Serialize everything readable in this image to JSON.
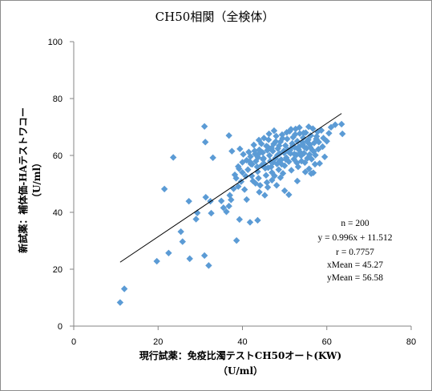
{
  "chart_data": {
    "type": "scatter",
    "title": "CH50相関（全検体）",
    "xlabel_line1": "現行試薬：免疫比濁テストCH50オート(KW)",
    "xlabel_line2": "（U/ml）",
    "ylabel_line1": "新試薬：補体価-HAテストワコー",
    "ylabel_line2": "（U/ml）",
    "xlim": [
      0,
      80
    ],
    "ylim": [
      0,
      100
    ],
    "xticks": [
      0,
      20,
      40,
      60,
      80
    ],
    "yticks": [
      0,
      20,
      40,
      60,
      80,
      100
    ],
    "grid": false,
    "marker_color": "#5B9BD5",
    "regression": {
      "slope": 0.996,
      "intercept": 11.512,
      "x_range": [
        11,
        63.5
      ]
    },
    "stats": [
      "n = 200",
      "y = 0.996x + 11.512",
      "r = 0.7757",
      "xMean = 45.27",
      "yMean = 56.58"
    ],
    "points": [
      [
        11,
        8.3
      ],
      [
        12,
        13.1
      ],
      [
        19.7,
        22.8
      ],
      [
        22.5,
        25.7
      ],
      [
        25.4,
        33.2
      ],
      [
        25.8,
        29.7
      ],
      [
        27.5,
        23.7
      ],
      [
        31,
        24.8
      ],
      [
        32,
        21.3
      ],
      [
        21.5,
        48.2
      ],
      [
        23.6,
        59.3
      ],
      [
        27.3,
        43.9
      ],
      [
        29,
        37.6
      ],
      [
        29.3,
        39.8
      ],
      [
        31.3,
        45.3
      ],
      [
        32.4,
        43.9
      ],
      [
        32.6,
        39.7
      ],
      [
        35,
        44
      ],
      [
        35.5,
        41.6
      ],
      [
        36.2,
        40.2
      ],
      [
        36.8,
        42.2
      ],
      [
        37,
        46
      ],
      [
        37.3,
        44.4
      ],
      [
        38.6,
        30.1
      ],
      [
        39,
        49.1
      ],
      [
        39.3,
        37.5
      ],
      [
        31,
        70.2
      ],
      [
        31.2,
        64.7
      ],
      [
        33,
        59.2
      ],
      [
        36.8,
        67
      ],
      [
        39.4,
        62.3
      ],
      [
        37.5,
        61.5
      ],
      [
        38.5,
        52
      ],
      [
        39,
        56.1
      ],
      [
        40,
        54
      ],
      [
        40.5,
        48
      ],
      [
        41,
        44.5
      ],
      [
        41.8,
        36.5
      ],
      [
        43.6,
        37.2
      ],
      [
        40.2,
        60.4
      ],
      [
        41,
        58.3
      ],
      [
        41.3,
        55
      ],
      [
        41.5,
        61.2
      ],
      [
        42,
        57
      ],
      [
        42.2,
        52.8
      ],
      [
        42.5,
        51
      ],
      [
        43,
        60.5
      ],
      [
        43.2,
        58
      ],
      [
        43.5,
        56
      ],
      [
        43.6,
        54.3
      ],
      [
        43.8,
        52
      ],
      [
        44,
        62
      ],
      [
        44.2,
        49.5
      ],
      [
        44.5,
        64.1
      ],
      [
        44.8,
        61
      ],
      [
        45,
        59
      ],
      [
        45.2,
        57
      ],
      [
        45.4,
        55.5
      ],
      [
        45.6,
        53
      ],
      [
        45.8,
        50.5
      ],
      [
        46,
        63
      ],
      [
        46.2,
        65.5
      ],
      [
        46.4,
        60
      ],
      [
        46.6,
        58
      ],
      [
        46.8,
        56
      ],
      [
        47,
        54
      ],
      [
        47.2,
        61.5
      ],
      [
        47.4,
        64
      ],
      [
        47.6,
        52.8
      ],
      [
        47.8,
        59
      ],
      [
        48,
        66.8
      ],
      [
        48.2,
        57
      ],
      [
        48.4,
        62.4
      ],
      [
        48.6,
        55
      ],
      [
        48.8,
        60.6
      ],
      [
        49,
        64.8
      ],
      [
        49.2,
        58.5
      ],
      [
        49.4,
        67.3
      ],
      [
        49.6,
        53.7
      ],
      [
        49.8,
        61.6
      ],
      [
        50,
        56.4
      ],
      [
        50.2,
        63.5
      ],
      [
        50.4,
        59.2
      ],
      [
        50.6,
        65.8
      ],
      [
        50.8,
        62
      ],
      [
        51,
        57.8
      ],
      [
        51.2,
        68.5
      ],
      [
        51.4,
        60.7
      ],
      [
        51.6,
        54.8
      ],
      [
        51.8,
        64.2
      ],
      [
        52,
        66.4
      ],
      [
        52.2,
        58.7
      ],
      [
        52.4,
        62.8
      ],
      [
        52.6,
        69.3
      ],
      [
        52.8,
        60.2
      ],
      [
        53,
        65
      ],
      [
        53.2,
        56
      ],
      [
        53.4,
        63.1
      ],
      [
        53.6,
        67.7
      ],
      [
        53.8,
        61
      ],
      [
        54,
        58
      ],
      [
        54.2,
        64.6
      ],
      [
        54.4,
        66.2
      ],
      [
        54.6,
        60.8
      ],
      [
        54.8,
        57.5
      ],
      [
        55,
        68
      ],
      [
        55.2,
        62.5
      ],
      [
        55.4,
        59
      ],
      [
        55.6,
        65.5
      ],
      [
        55.8,
        55.3
      ],
      [
        56,
        63.8
      ],
      [
        56.2,
        67
      ],
      [
        56.4,
        58.7
      ],
      [
        56.6,
        61.8
      ],
      [
        56.8,
        53.9
      ],
      [
        57,
        64.4
      ],
      [
        57.3,
        60.1
      ],
      [
        57.6,
        66.7
      ],
      [
        58,
        62.2
      ],
      [
        58.3,
        57.2
      ],
      [
        58.7,
        68.8
      ],
      [
        59,
        63.1
      ],
      [
        59.5,
        59.5
      ],
      [
        60,
        65
      ],
      [
        60.5,
        67.8
      ],
      [
        61,
        69.9
      ],
      [
        62,
        70.8
      ],
      [
        63.5,
        71
      ],
      [
        63.7,
        67.6
      ],
      [
        43.1,
        50.2
      ],
      [
        44,
        47.1
      ],
      [
        45.3,
        46
      ],
      [
        46,
        48.8
      ],
      [
        47,
        51.3
      ],
      [
        48.1,
        49.5
      ],
      [
        49,
        52.2
      ],
      [
        50,
        47.6
      ],
      [
        51,
        46.2
      ],
      [
        53,
        51
      ],
      [
        54.9,
        54.2
      ],
      [
        56.3,
        53.6
      ],
      [
        57.2,
        56.9
      ],
      [
        42.7,
        63.7
      ],
      [
        41.9,
        59.6
      ],
      [
        40.8,
        52.7
      ],
      [
        40,
        57.6
      ],
      [
        39.7,
        50.8
      ],
      [
        39.2,
        55.3
      ],
      [
        38.2,
        53.2
      ],
      [
        37.9,
        48.3
      ],
      [
        45.1,
        66.1
      ],
      [
        46.3,
        67.6
      ],
      [
        47.5,
        68.7
      ],
      [
        48.7,
        63.4
      ],
      [
        49.5,
        66
      ],
      [
        50.5,
        68.1
      ],
      [
        51.5,
        69.2
      ],
      [
        52.5,
        67.4
      ],
      [
        53.5,
        69.8
      ],
      [
        54.5,
        67.9
      ],
      [
        55.7,
        70.1
      ],
      [
        56.7,
        69.4
      ],
      [
        57.8,
        68.3
      ],
      [
        42.3,
        56.9
      ],
      [
        43.7,
        59.3
      ],
      [
        44.6,
        56.6
      ],
      [
        45.9,
        61.8
      ],
      [
        46.9,
        62.6
      ],
      [
        47.9,
        64.9
      ],
      [
        48.9,
        58.2
      ],
      [
        49.9,
        60.9
      ],
      [
        50.9,
        61.3
      ],
      [
        51.9,
        63.3
      ],
      [
        52.9,
        57.4
      ],
      [
        53.9,
        59.9
      ],
      [
        54.7,
        62.9
      ],
      [
        55.9,
        60.3
      ],
      [
        56.9,
        61.4
      ],
      [
        58.1,
        64.7
      ],
      [
        59.2,
        66.1
      ],
      [
        44.9,
        58.6
      ],
      [
        46.1,
        55.7
      ],
      [
        47.3,
        57.6
      ],
      [
        48.3,
        60.1
      ],
      [
        49.3,
        56.9
      ],
      [
        50.3,
        58.6
      ],
      [
        51.3,
        61.9
      ],
      [
        52.3,
        60.5
      ],
      [
        53.3,
        62.1
      ],
      [
        54.3,
        63.9
      ],
      [
        55.3,
        64.9
      ],
      [
        56.1,
        62.8
      ],
      [
        45.7,
        63.3
      ],
      [
        44.1,
        60.9
      ],
      [
        42.9,
        61.6
      ],
      [
        41.7,
        57.9
      ],
      [
        43.9,
        65.4
      ],
      [
        57.5,
        65.8
      ]
    ]
  }
}
